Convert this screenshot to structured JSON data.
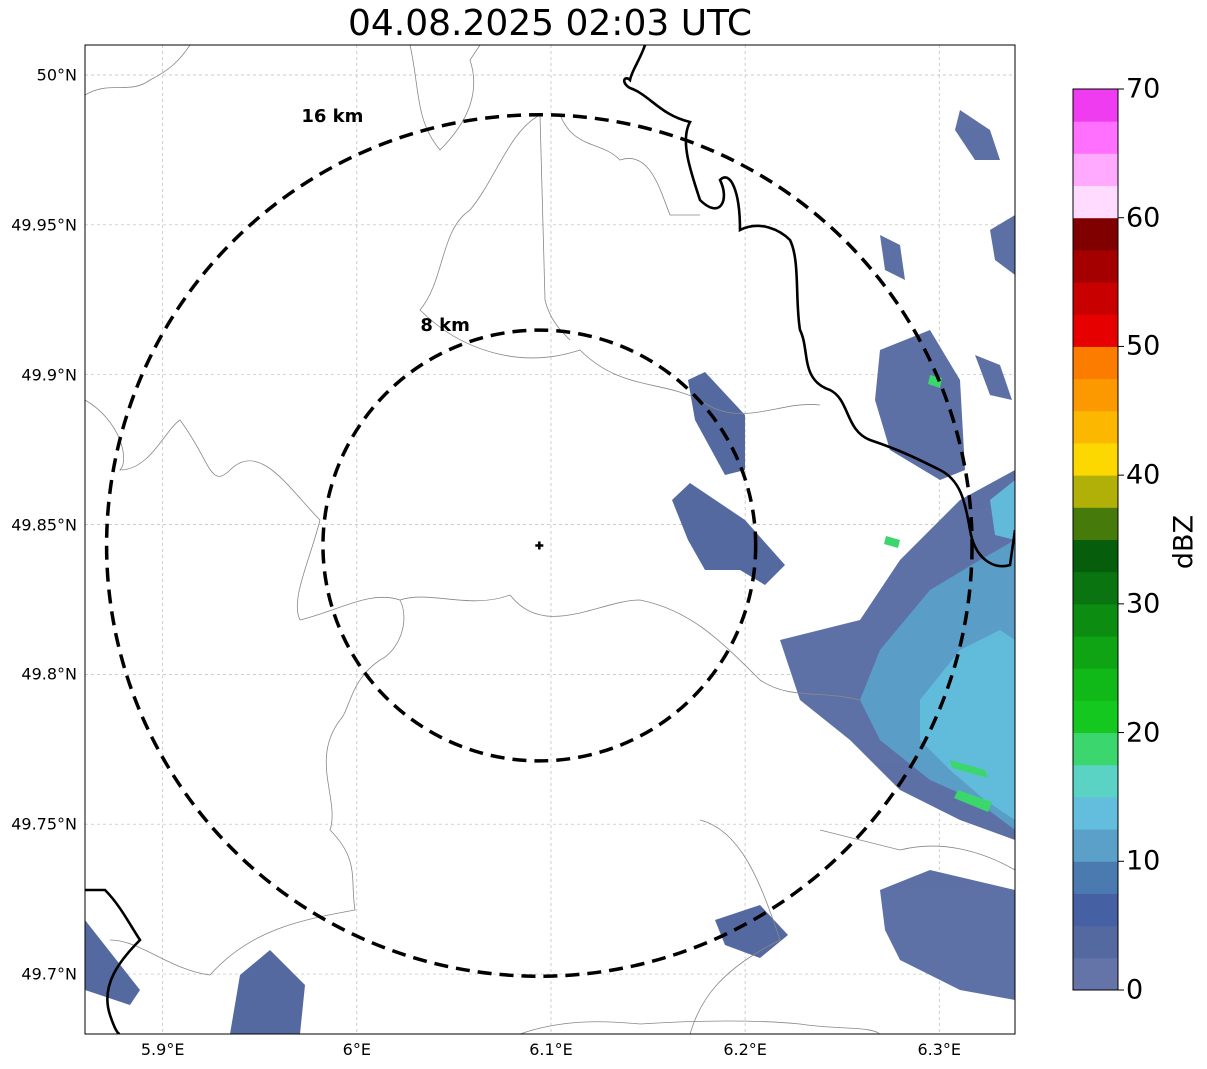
{
  "title": "04.08.2025 02:03 UTC",
  "map": {
    "lat_ticks": [
      "50°N",
      "49.95°N",
      "49.9°N",
      "49.85°N",
      "49.8°N",
      "49.75°N",
      "49.7°N"
    ],
    "lon_ticks": [
      "5.9°E",
      "6°E",
      "6.1°E",
      "6.2°E",
      "6.3°E"
    ],
    "lat_values": [
      50.0,
      49.95,
      49.9,
      49.85,
      49.8,
      49.75,
      49.7
    ],
    "lon_values": [
      5.9,
      6.0,
      6.1,
      6.2,
      6.3
    ],
    "extent": {
      "lon_min": 5.86,
      "lon_max": 6.339,
      "lat_min": 49.68,
      "lat_max": 50.01
    },
    "radar_site": {
      "lon": 6.094,
      "lat": 49.843
    },
    "range_rings": [
      {
        "label": "16 km",
        "radius_km": 16
      },
      {
        "label": "8 km",
        "radius_km": 8
      }
    ],
    "grid": true
  },
  "colorbar": {
    "unit": "dBZ",
    "min": 0,
    "max": 70,
    "tick_labels": [
      "0",
      "10",
      "20",
      "30",
      "40",
      "50",
      "60",
      "70"
    ],
    "tick_values": [
      0,
      10,
      20,
      30,
      40,
      50,
      60,
      70
    ],
    "colors": [
      "#6474a8",
      "#5569a1",
      "#4660a4",
      "#4a7ab0",
      "#5aa0c8",
      "#62bedc",
      "#5ad2c4",
      "#3cd66e",
      "#14c820",
      "#10b818",
      "#0ea414",
      "#0c8c10",
      "#0a7410",
      "#065e0c",
      "#467a0a",
      "#b0b008",
      "#fcd800",
      "#fcb800",
      "#fc9800",
      "#fc7c00",
      "#e60000",
      "#c80000",
      "#a40000",
      "#800000",
      "#ffdcff",
      "#ffaaff",
      "#ff70ff",
      "#f03cf0"
    ]
  }
}
